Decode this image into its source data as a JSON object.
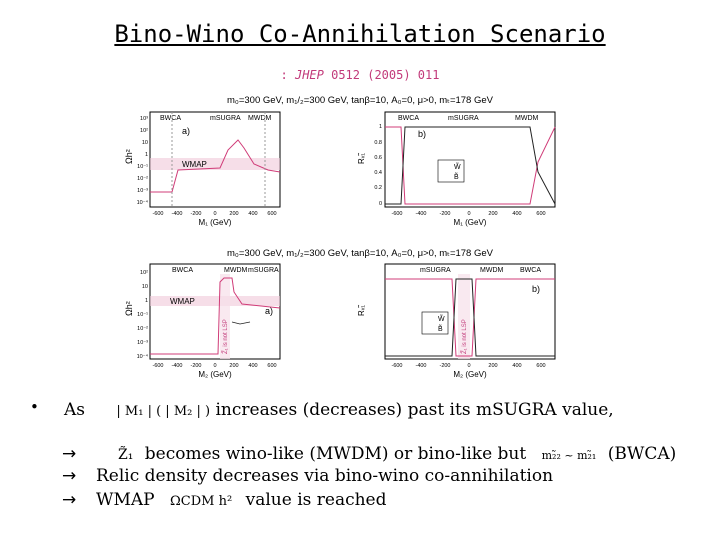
{
  "title": "Bino-Wino Co-Annihilation Scenario",
  "reference": {
    "prefix": ": ",
    "journal": "JHEP",
    "citation": " 0512 (2005) 011"
  },
  "figure": {
    "top_header": "m₀=300 GeV, m₁/₂=300 GeV, tanβ=10, A₀=0, μ>0, mₜ=178 GeV",
    "bottom_header": "m₀=300 GeV, m₁/₂=300 GeV, tanβ=10, A₀=0, μ>0, mₜ=178 GeV",
    "panel_a_label": "a)",
    "panel_b_label": "b)",
    "ylabel_relic": "Ωh²",
    "ylabel_frac": "Rᵥ̃₁",
    "xlabel_top": "M₁ (GeV)",
    "xlabel_bottom": "M₂ (GeV)",
    "wmap_label": "WMAP",
    "region_top_a": [
      "BWCA",
      "mSUGRA",
      "MWDM"
    ],
    "region_top_b": [
      "BWCA",
      "mSUGRA",
      "MWDM"
    ],
    "region_bottom_a": [
      "BWCA",
      "MWDM",
      "mSUGRA"
    ],
    "region_bottom_b": [
      "mSUGRA",
      "MWDM",
      "BWCA"
    ],
    "not_lsp": "Z̃₁ is not LSP",
    "legend_w": "W̃",
    "legend_b": "B̃",
    "ticks_x_top": [
      "-600",
      "-400",
      "-200",
      "0",
      "200",
      "400",
      "600"
    ],
    "ticks_x_bottom": [
      "-600",
      "-400",
      "-200",
      "0",
      "200",
      "400",
      "600"
    ],
    "ticks_y_relic": [
      "10³",
      "10²",
      "10",
      "1",
      "10⁻¹",
      "10⁻²",
      "10⁻³",
      "10⁻⁴"
    ],
    "ticks_y_frac": [
      "1",
      "0.8",
      "0.6",
      "0.4",
      "0.2",
      "0"
    ]
  },
  "bullet_lines": {
    "as_prefix": "As",
    "as_math": "| M₁ | ( | M₂ | )",
    "as_suffix": "increases (decreases) past its mSUGRA value,",
    "line2_math": "Z̃₁",
    "line2_text": "becomes wino-like (MWDM) or bino-like but",
    "line2_math2": "m₂̃₂ ~ m₂̃₁",
    "line2_suffix": "(BWCA)",
    "line3_text": "Relic density decreases via bino-wino co-annihilation",
    "line4_prefix": "WMAP",
    "line4_math": "ΩCDM h²",
    "line4_suffix": "value is reached"
  },
  "icons": {
    "bullet": "bullet-dot",
    "arrow": "right-arrow"
  }
}
